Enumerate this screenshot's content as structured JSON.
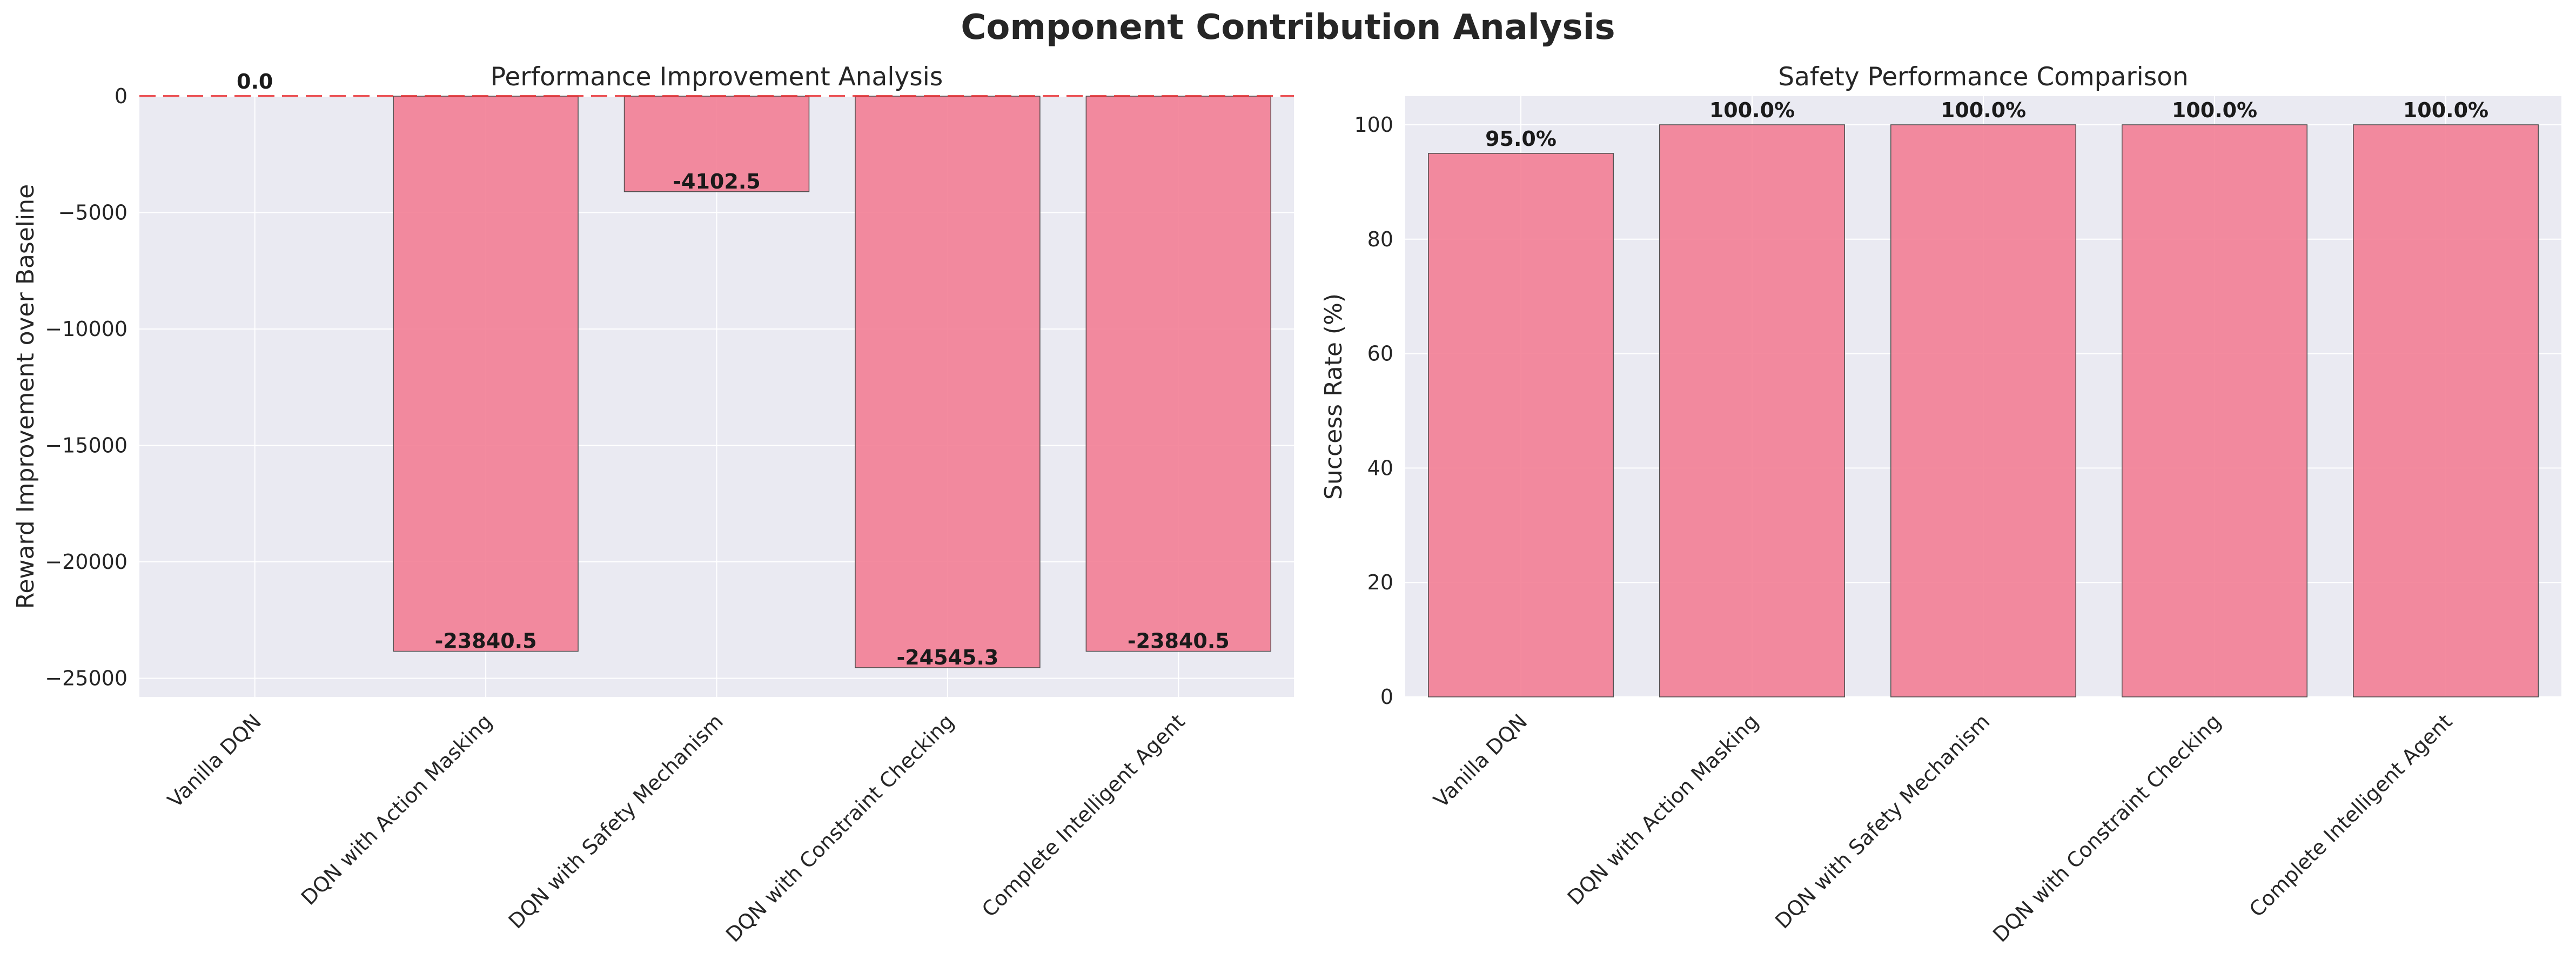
{
  "figure": {
    "title": "Component Contribution Analysis"
  },
  "colors": {
    "plot_background": "#eaeaf2",
    "grid": "#ffffff",
    "bar_fill": "#f37b92",
    "bar_edge": "#4d4d4d",
    "baseline_line": "#e8373b",
    "text": "#262626"
  },
  "chart_data": [
    {
      "type": "bar",
      "title": "Performance Improvement Analysis",
      "xlabel": "",
      "ylabel": "Reward Improvement over Baseline",
      "categories": [
        "Vanilla DQN",
        "DQN with Action Masking",
        "DQN with Safety Mechanism",
        "DQN with Constraint Checking",
        "Complete Intelligent Agent"
      ],
      "values": [
        0.0,
        -23840.5,
        -4102.5,
        -24545.3,
        -23840.5
      ],
      "value_labels": [
        "0.0",
        "-23840.5",
        "-4102.5",
        "-24545.3",
        "-23840.5"
      ],
      "ylim": [
        -25800,
        0
      ],
      "yticks": [
        0,
        -5000,
        -10000,
        -15000,
        -20000,
        -25000
      ],
      "ytick_labels": [
        "0",
        "−5000",
        "−10000",
        "−15000",
        "−20000",
        "−25000"
      ],
      "reference_line": {
        "y": 0,
        "style": "dashed"
      },
      "grid": true,
      "legend": "none"
    },
    {
      "type": "bar",
      "title": "Safety Performance Comparison",
      "xlabel": "",
      "ylabel": "Success Rate (%)",
      "categories": [
        "Vanilla DQN",
        "DQN with Action Masking",
        "DQN with Safety Mechanism",
        "DQN with Constraint Checking",
        "Complete Intelligent Agent"
      ],
      "values": [
        95.0,
        100.0,
        100.0,
        100.0,
        100.0
      ],
      "value_labels": [
        "95.0%",
        "100.0%",
        "100.0%",
        "100.0%",
        "100.0%"
      ],
      "ylim": [
        0,
        105
      ],
      "yticks": [
        0,
        20,
        40,
        60,
        80,
        100
      ],
      "ytick_labels": [
        "0",
        "20",
        "40",
        "60",
        "80",
        "100"
      ],
      "grid": true,
      "legend": "none"
    }
  ]
}
